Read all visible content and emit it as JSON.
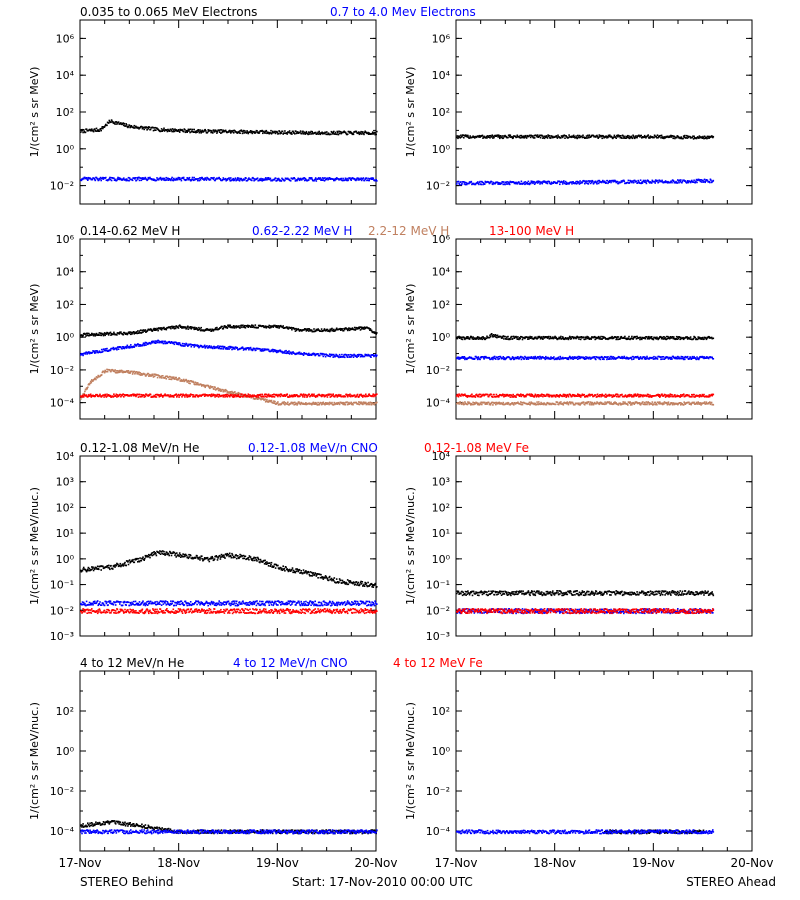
{
  "colors": {
    "black": "#000000",
    "blue": "#0000ff",
    "tan": "#c08060",
    "red": "#ff0000"
  },
  "footer": {
    "left": "STEREO Behind",
    "center": "Start: 17-Nov-2010 00:00 UTC",
    "right": "STEREO Ahead"
  },
  "chart_data": [
    {
      "type": "scatter",
      "spacecraft": "STEREO Behind",
      "ylabel": "1/(cm² s sr MeV)",
      "yscale": "log",
      "ylim_exp": [
        -3,
        7
      ],
      "ytick_labels": [
        "10⁻²",
        "10⁰",
        "10²",
        "10⁴",
        "10⁶"
      ],
      "x": [
        "17-Nov",
        "18-Nov",
        "19-Nov",
        "20-Nov"
      ],
      "series": [
        {
          "name": "0.035 to 0.065 MeV Electrons",
          "color": "#000000",
          "points": [
            [
              0,
              10
            ],
            [
              0.2,
              12
            ],
            [
              0.3,
              35
            ],
            [
              0.5,
              18
            ],
            [
              0.8,
              12
            ],
            [
              1.2,
              10
            ],
            [
              1.8,
              9
            ],
            [
              2.4,
              8
            ],
            [
              3,
              8
            ]
          ]
        },
        {
          "name": "0.7 to 4.0 Mev Electrons",
          "color": "#0000ff",
          "points": [
            [
              0,
              0.025
            ],
            [
              1,
              0.025
            ],
            [
              2,
              0.024
            ],
            [
              3,
              0.024
            ]
          ]
        }
      ]
    },
    {
      "type": "scatter",
      "spacecraft": "STEREO Ahead",
      "ylabel": "1/(cm² s sr MeV)",
      "yscale": "log",
      "ylim_exp": [
        -3,
        7
      ],
      "ytick_labels": [
        "10⁻²",
        "10⁰",
        "10²",
        "10⁴",
        "10⁶"
      ],
      "x": [
        "17-Nov",
        "18-Nov",
        "19-Nov",
        "20-Nov"
      ],
      "series": [
        {
          "name": "0.035 to 0.065 MeV Electrons",
          "color": "#000000",
          "points": [
            [
              0,
              5
            ],
            [
              1,
              5
            ],
            [
              2,
              5
            ],
            [
              2.6,
              4.5
            ]
          ]
        },
        {
          "name": "0.7 to 4.0 Mev Electrons",
          "color": "#0000ff",
          "points": [
            [
              0,
              0.015
            ],
            [
              1,
              0.016
            ],
            [
              2,
              0.018
            ],
            [
              2.6,
              0.02
            ]
          ]
        }
      ]
    },
    {
      "type": "scatter",
      "spacecraft": "STEREO Behind",
      "ylabel": "1/(cm² s sr MeV)",
      "yscale": "log",
      "ylim_exp": [
        -5,
        6
      ],
      "ytick_labels": [
        "10⁻⁴",
        "10⁻²",
        "10⁰",
        "10²",
        "10⁴",
        "10⁶"
      ],
      "x": [
        "17-Nov",
        "18-Nov",
        "19-Nov",
        "20-Nov"
      ],
      "series": [
        {
          "name": "0.14-0.62 MeV H",
          "color": "#000000",
          "points": [
            [
              0,
              1.5
            ],
            [
              0.5,
              2
            ],
            [
              1,
              5
            ],
            [
              1.3,
              3
            ],
            [
              1.5,
              5
            ],
            [
              2,
              5
            ],
            [
              2.2,
              3
            ],
            [
              2.5,
              3
            ],
            [
              2.9,
              4
            ],
            [
              3,
              2
            ]
          ]
        },
        {
          "name": "0.62-2.22 MeV H",
          "color": "#0000ff",
          "points": [
            [
              0,
              0.1
            ],
            [
              0.3,
              0.2
            ],
            [
              0.8,
              0.6
            ],
            [
              1.2,
              0.3
            ],
            [
              1.8,
              0.2
            ],
            [
              2.3,
              0.1
            ],
            [
              2.6,
              0.08
            ],
            [
              3,
              0.08
            ]
          ]
        },
        {
          "name": "2.2-12 MeV H",
          "color": "#c08060",
          "points": [
            [
              0,
              0.0002
            ],
            [
              0.1,
              0.002
            ],
            [
              0.25,
              0.01
            ],
            [
              0.5,
              0.008
            ],
            [
              1,
              0.003
            ],
            [
              1.5,
              0.0005
            ],
            [
              1.8,
              0.0002
            ],
            [
              2,
              0.0001
            ],
            [
              3,
              0.0001
            ]
          ]
        },
        {
          "name": "13-100 MeV H",
          "color": "#ff0000",
          "points": [
            [
              0,
              0.0003
            ],
            [
              1,
              0.0003
            ],
            [
              2,
              0.0003
            ],
            [
              3,
              0.0003
            ]
          ]
        }
      ]
    },
    {
      "type": "scatter",
      "spacecraft": "STEREO Ahead",
      "ylabel": "1/(cm² s sr MeV)",
      "yscale": "log",
      "ylim_exp": [
        -5,
        6
      ],
      "ytick_labels": [
        "10⁻⁴",
        "10⁻²",
        "10⁰",
        "10²",
        "10⁴",
        "10⁶"
      ],
      "x": [
        "17-Nov",
        "18-Nov",
        "19-Nov",
        "20-Nov"
      ],
      "series": [
        {
          "name": "0.14-0.62 MeV H",
          "color": "#000000",
          "points": [
            [
              0,
              1
            ],
            [
              0.3,
              1
            ],
            [
              0.35,
              1.5
            ],
            [
              0.5,
              1
            ],
            [
              1.5,
              1
            ],
            [
              2.6,
              1
            ]
          ]
        },
        {
          "name": "0.62-2.22 MeV H",
          "color": "#0000ff",
          "points": [
            [
              0,
              0.06
            ],
            [
              1,
              0.06
            ],
            [
              2,
              0.06
            ],
            [
              2.6,
              0.06
            ]
          ]
        },
        {
          "name": "2.2-12 MeV H",
          "color": "#c08060",
          "points": [
            [
              0,
              0.0001
            ],
            [
              1,
              0.0001
            ],
            [
              2,
              0.0001
            ],
            [
              2.6,
              0.0001
            ]
          ]
        },
        {
          "name": "13-100 MeV H",
          "color": "#ff0000",
          "points": [
            [
              0,
              0.0003
            ],
            [
              1,
              0.0003
            ],
            [
              2,
              0.0003
            ],
            [
              2.6,
              0.0003
            ]
          ]
        }
      ]
    },
    {
      "type": "scatter",
      "spacecraft": "STEREO Behind",
      "ylabel": "1/(cm² s sr MeV/nuc.)",
      "yscale": "log",
      "ylim_exp": [
        -3,
        4
      ],
      "ytick_labels": [
        "10⁻³",
        "10⁻²",
        "10⁻¹",
        "10⁰",
        "10¹",
        "10²",
        "10³",
        "10⁴"
      ],
      "x": [
        "17-Nov",
        "18-Nov",
        "19-Nov",
        "20-Nov"
      ],
      "series": [
        {
          "name": "0.12-1.08 MeV/n He",
          "color": "#000000",
          "points": [
            [
              0,
              0.4
            ],
            [
              0.3,
              0.5
            ],
            [
              0.6,
              1
            ],
            [
              0.8,
              2
            ],
            [
              1,
              1.5
            ],
            [
              1.3,
              1
            ],
            [
              1.5,
              1.5
            ],
            [
              1.8,
              1
            ],
            [
              2,
              0.5
            ],
            [
              2.3,
              0.3
            ],
            [
              2.6,
              0.15
            ],
            [
              3,
              0.1
            ]
          ]
        },
        {
          "name": "0.12-1.08 MeV/n CNO",
          "color": "#0000ff",
          "points": [
            [
              0,
              0.02
            ],
            [
              1,
              0.02
            ],
            [
              2,
              0.02
            ],
            [
              3,
              0.02
            ]
          ]
        },
        {
          "name": "0.12-1.08 MeV Fe",
          "color": "#ff0000",
          "points": [
            [
              0,
              0.01
            ],
            [
              1,
              0.01
            ],
            [
              2,
              0.01
            ],
            [
              3,
              0.01
            ]
          ]
        }
      ]
    },
    {
      "type": "scatter",
      "spacecraft": "STEREO Ahead",
      "ylabel": "1/(cm² s sr MeV/nuc.)",
      "yscale": "log",
      "ylim_exp": [
        -3,
        4
      ],
      "ytick_labels": [
        "10⁻³",
        "10⁻²",
        "10⁻¹",
        "10⁰",
        "10¹",
        "10²",
        "10³",
        "10⁴"
      ],
      "x": [
        "17-Nov",
        "18-Nov",
        "19-Nov",
        "20-Nov"
      ],
      "series": [
        {
          "name": "0.12-1.08 MeV/n He",
          "color": "#000000",
          "points": [
            [
              0,
              0.05
            ],
            [
              1,
              0.05
            ],
            [
              2,
              0.05
            ],
            [
              2.6,
              0.05
            ]
          ]
        },
        {
          "name": "0.12-1.08 MeV/n CNO",
          "color": "#0000ff",
          "points": [
            [
              0,
              0.01
            ],
            [
              1,
              0.01
            ],
            [
              2,
              0.01
            ],
            [
              2.6,
              0.01
            ]
          ]
        },
        {
          "name": "0.12-1.08 MeV Fe",
          "color": "#ff0000",
          "points": [
            [
              0,
              0.01
            ],
            [
              1,
              0.01
            ],
            [
              2,
              0.01
            ],
            [
              2.6,
              0.01
            ]
          ]
        }
      ]
    },
    {
      "type": "scatter",
      "spacecraft": "STEREO Behind",
      "ylabel": "1/(cm² s sr MeV/nuc.)",
      "yscale": "log",
      "ylim_exp": [
        -5,
        4
      ],
      "ytick_labels": [
        "10⁻⁴",
        "10⁻²",
        "10⁰",
        "10²"
      ],
      "x": [
        "17-Nov",
        "18-Nov",
        "19-Nov",
        "20-Nov"
      ],
      "series": [
        {
          "name": "4 to 12 MeV/n He",
          "color": "#000000",
          "points": [
            [
              0,
              0.0002
            ],
            [
              0.3,
              0.0003
            ],
            [
              0.6,
              0.0002
            ],
            [
              1,
              0.0001
            ],
            [
              2,
              0.0001
            ],
            [
              3,
              0.0001
            ]
          ]
        },
        {
          "name": "4 to 12 MeV/n CNO",
          "color": "#0000ff",
          "points": [
            [
              0,
              0.0001
            ],
            [
              1,
              0.0001
            ],
            [
              2,
              0.0001
            ],
            [
              3,
              0.0001
            ]
          ]
        },
        {
          "name": "4 to 12 MeV Fe",
          "color": "#ff0000",
          "points": []
        }
      ]
    },
    {
      "type": "scatter",
      "spacecraft": "STEREO Ahead",
      "ylabel": "1/(cm² s sr MeV/nuc.)",
      "yscale": "log",
      "ylim_exp": [
        -5,
        4
      ],
      "ytick_labels": [
        "10⁻⁴",
        "10⁻²",
        "10⁰",
        "10²"
      ],
      "x": [
        "17-Nov",
        "18-Nov",
        "19-Nov",
        "20-Nov"
      ],
      "series": [
        {
          "name": "4 to 12 MeV/n He",
          "color": "#000000",
          "points": [
            [
              1.5,
              0.0001
            ],
            [
              2.5,
              0.0001
            ]
          ]
        },
        {
          "name": "4 to 12 MeV/n CNO",
          "color": "#0000ff",
          "points": [
            [
              0,
              0.0001
            ],
            [
              1,
              0.0001
            ],
            [
              2,
              0.0001
            ],
            [
              2.6,
              0.0001
            ]
          ]
        },
        {
          "name": "4 to 12 MeV Fe",
          "color": "#ff0000",
          "points": []
        }
      ]
    }
  ]
}
